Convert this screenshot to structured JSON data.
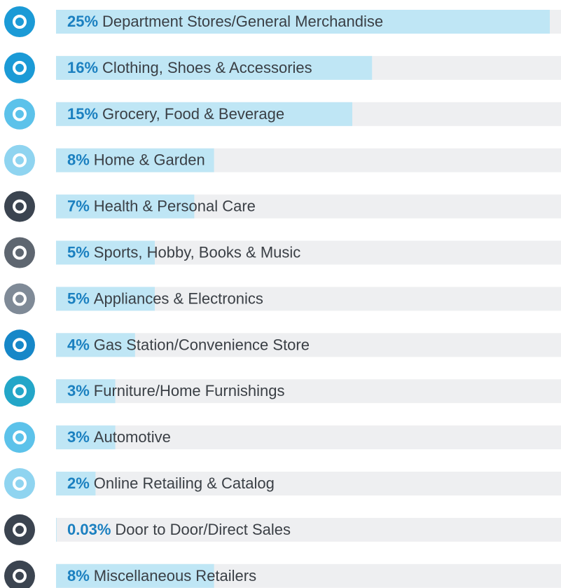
{
  "chart_data": {
    "type": "bar",
    "categories": [
      "Department Stores/General Merchandise",
      "Clothing, Shoes & Accessories",
      "Grocery, Food & Beverage",
      "Home & Garden",
      "Health & Personal Care",
      "Sports, Hobby, Books & Music",
      "Appliances & Electronics",
      "Gas Station/Convenience Store",
      "Furniture/Home Furnishings",
      "Automotive",
      "Online Retailing & Catalog",
      "Door to Door/Direct Sales",
      "Miscellaneous Retailers"
    ],
    "values": [
      25,
      16,
      15,
      8,
      7,
      5,
      5,
      4,
      3,
      3,
      2,
      0.03,
      8
    ],
    "value_labels": [
      "25%",
      "16%",
      "15%",
      "8%",
      "7%",
      "5%",
      "5%",
      "4%",
      "3%",
      "3%",
      "2%",
      "0.03%",
      "8%"
    ],
    "color": "#bfe6f5",
    "track_color": "#eeeff1",
    "xlim": [
      0,
      25
    ]
  }
}
